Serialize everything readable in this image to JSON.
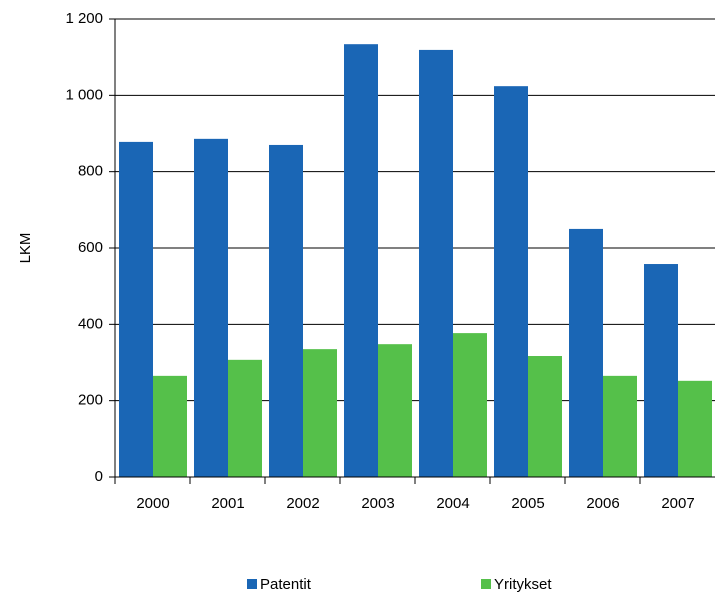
{
  "chart_data": {
    "type": "bar",
    "y_label": "LKM",
    "categories": [
      "2000",
      "2001",
      "2002",
      "2003",
      "2004",
      "2005",
      "2006",
      "2007"
    ],
    "series": [
      {
        "name": "Patentit",
        "color": "#1a66b5",
        "values": [
          878,
          886,
          870,
          1134,
          1119,
          1024,
          650,
          558
        ]
      },
      {
        "name": "Yritykset",
        "color": "#55c04a",
        "values": [
          265,
          307,
          335,
          348,
          377,
          317,
          265,
          252
        ]
      }
    ],
    "ylim": [
      0,
      1200
    ],
    "yticks": [
      0,
      200,
      400,
      600,
      800,
      {
        "value": 1000,
        "label": "1 000"
      },
      {
        "value": 1200,
        "label": "1 200"
      }
    ],
    "grid": true,
    "legend": "bottom"
  }
}
